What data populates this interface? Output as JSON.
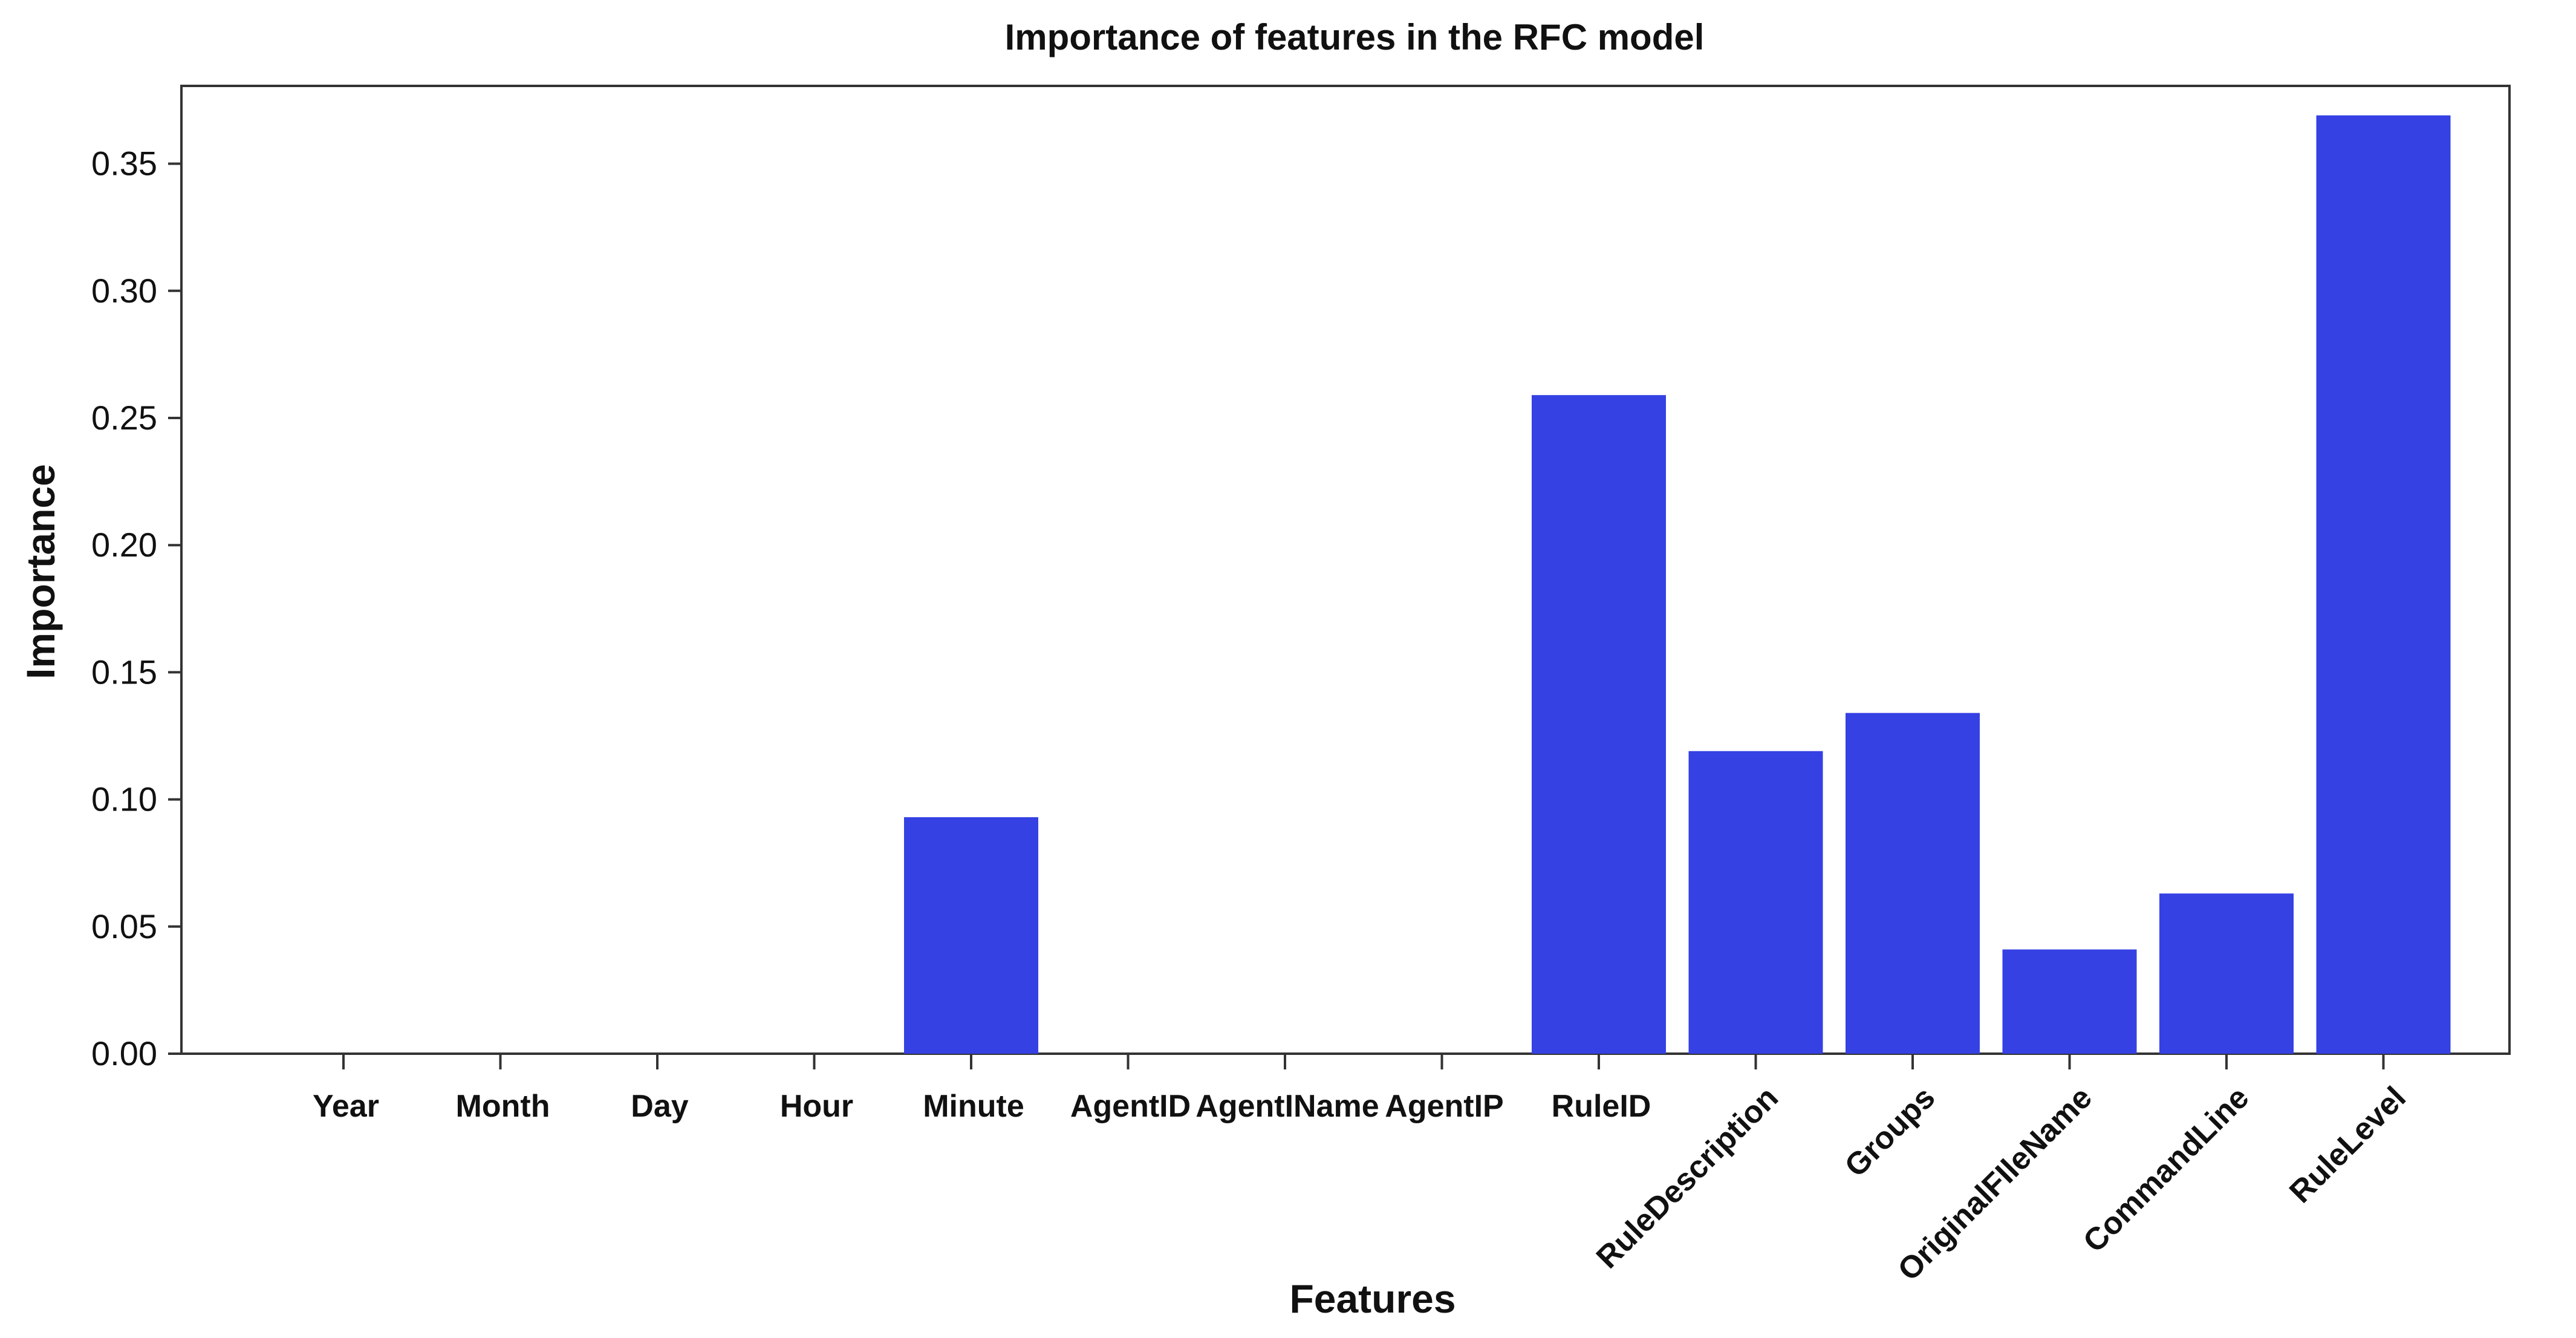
{
  "chart_data": {
    "type": "bar",
    "title": "Importance of features in the RFC model",
    "xlabel": "Features",
    "ylabel": "Importance",
    "categories": [
      "Year",
      "Month",
      "Day",
      "Hour",
      "Minute",
      "AgentID",
      "AgentIName",
      "AgentIP",
      "RuleID",
      "RuleDescription",
      "Groups",
      "OriginalFIleName",
      "CommandLine",
      "RuleLevel"
    ],
    "values": [
      0.0,
      0.0,
      0.0,
      0.0,
      0.093,
      0.0,
      0.0,
      0.0,
      0.259,
      0.119,
      0.134,
      0.041,
      0.063,
      0.369
    ],
    "rotated_labels_from_index": 9,
    "ylim": [
      0,
      0.385
    ],
    "yticks": [
      0.0,
      0.05,
      0.1,
      0.15,
      0.2,
      0.25,
      0.3,
      0.35
    ],
    "ytick_labels": [
      "0.00",
      "0.05",
      "0.10",
      "0.15",
      "0.20",
      "0.25",
      "0.30",
      "0.35"
    ],
    "bar_color": "#3541E3",
    "grid": false,
    "legend": "none"
  }
}
